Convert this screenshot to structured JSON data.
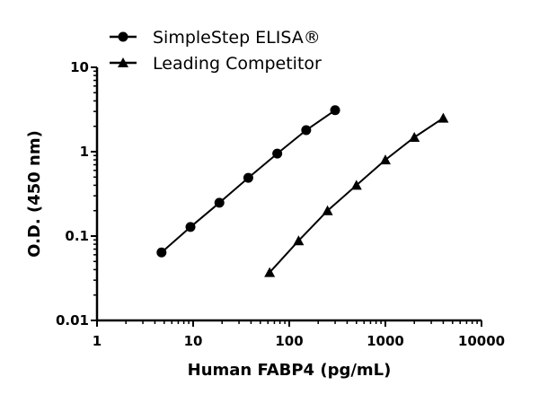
{
  "chart_data": {
    "type": "line",
    "title": "",
    "xlabel": "Human FABP4 (pg/mL)",
    "ylabel": "O.D. (450 nm)",
    "xscale": "log",
    "yscale": "log",
    "xlim": [
      1,
      10000
    ],
    "ylim": [
      0.01,
      10
    ],
    "xticks": [
      "1",
      "10",
      "100",
      "1000",
      "10000"
    ],
    "yticks": [
      "0.01",
      "0.1",
      "1",
      "10"
    ],
    "grid": false,
    "legend_position": "top",
    "series": [
      {
        "name": "SimpleStep ELISA®",
        "marker": "circle",
        "color": "#000000",
        "x": [
          4.69,
          9.38,
          18.75,
          37.5,
          75,
          150,
          300
        ],
        "y": [
          0.064,
          0.128,
          0.248,
          0.49,
          0.95,
          1.8,
          3.1
        ]
      },
      {
        "name": "Leading Competitor",
        "marker": "triangle",
        "color": "#000000",
        "x": [
          62.5,
          125,
          250,
          500,
          1000,
          2000,
          4000
        ],
        "y": [
          0.037,
          0.088,
          0.2,
          0.4,
          0.8,
          1.48,
          2.5
        ]
      }
    ]
  }
}
